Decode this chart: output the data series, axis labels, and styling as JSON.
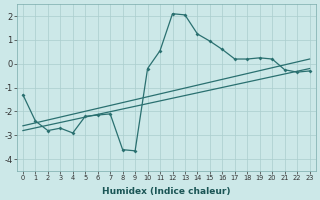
{
  "xlabel": "Humidex (Indice chaleur)",
  "xlim": [
    -0.5,
    23.5
  ],
  "ylim": [
    -4.5,
    2.5
  ],
  "yticks": [
    -4,
    -3,
    -2,
    -1,
    0,
    1,
    2
  ],
  "xticks": [
    0,
    1,
    2,
    3,
    4,
    5,
    6,
    7,
    8,
    9,
    10,
    11,
    12,
    13,
    14,
    15,
    16,
    17,
    18,
    19,
    20,
    21,
    22,
    23
  ],
  "background_color": "#cce8e8",
  "grid_color": "#aacece",
  "line_color": "#2a7070",
  "line1_x": [
    0,
    1,
    2,
    3,
    4,
    5,
    6,
    7,
    8,
    9,
    10,
    11,
    12,
    13,
    14,
    15,
    16,
    17,
    18,
    19,
    20,
    21,
    22,
    23
  ],
  "line1_y": [
    -1.3,
    -2.4,
    -2.8,
    -2.7,
    -2.9,
    -2.2,
    -2.15,
    -2.1,
    -3.6,
    -3.65,
    -0.2,
    0.55,
    2.1,
    2.05,
    1.25,
    0.95,
    0.6,
    0.2,
    0.2,
    0.25,
    0.2,
    -0.25,
    -0.35,
    -0.3
  ],
  "line2_x": [
    0,
    23
  ],
  "line2_y": [
    -2.6,
    0.2
  ],
  "line3_x": [
    0,
    23
  ],
  "line3_y": [
    -2.8,
    -0.2
  ]
}
